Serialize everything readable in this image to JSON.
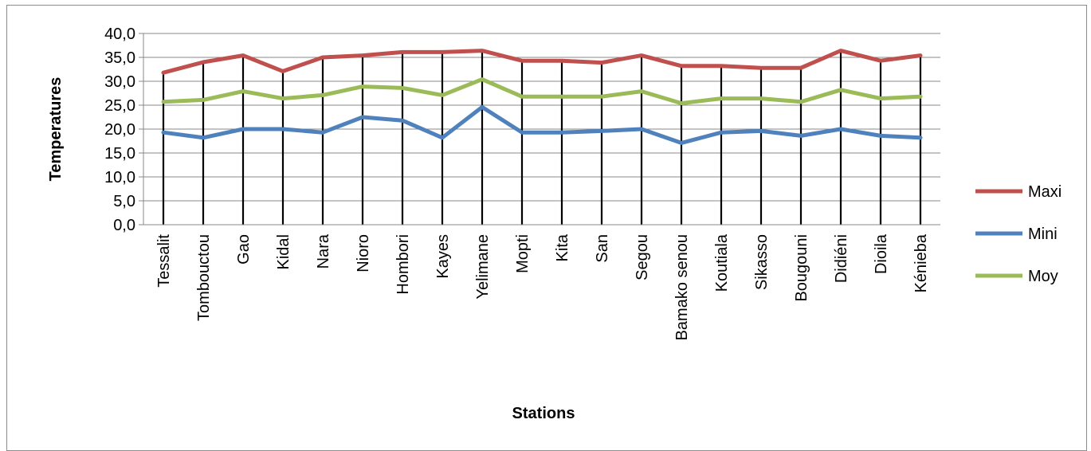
{
  "chart_data": {
    "type": "line",
    "xlabel": "Stations",
    "ylabel": "Temperatures",
    "ylim": [
      0,
      40
    ],
    "yticks": [
      "0,0",
      "5,0",
      "10,0",
      "15,0",
      "20,0",
      "25,0",
      "30,0",
      "35,0",
      "40,0"
    ],
    "grid": "horizontal",
    "drop_lines": true,
    "legend_position": "right",
    "categories": [
      "Tessalit",
      "Tombouctou",
      "Gao",
      "Kidal",
      "Nara",
      "Nioro",
      "Hombori",
      "Kayes",
      "Yelimane",
      "Mopti",
      "Kita",
      "San",
      "Segou",
      "Bamako senou",
      "Koutiala",
      "Sikasso",
      "Bougouni",
      "Didiéni",
      "Dioila",
      "Kénieba"
    ],
    "series": [
      {
        "name": "Maxi",
        "color": "#C0504D",
        "values": [
          31.8,
          34.0,
          35.4,
          32.1,
          35.0,
          35.4,
          36.1,
          36.1,
          36.4,
          34.3,
          34.3,
          33.9,
          35.4,
          33.2,
          33.2,
          32.8,
          32.8,
          36.4,
          34.3,
          35.4
        ]
      },
      {
        "name": "Mini",
        "color": "#4F81BD",
        "values": [
          19.3,
          18.2,
          20.0,
          20.0,
          19.3,
          22.5,
          21.8,
          18.2,
          24.6,
          19.3,
          19.3,
          19.6,
          20.0,
          17.1,
          19.3,
          19.6,
          18.6,
          20.0,
          18.6,
          18.2
        ]
      },
      {
        "name": "Moy",
        "color": "#9BBB59",
        "values": [
          25.7,
          26.1,
          27.9,
          26.4,
          27.1,
          28.9,
          28.6,
          27.1,
          30.4,
          26.8,
          26.8,
          26.8,
          27.9,
          25.4,
          26.4,
          26.4,
          25.7,
          28.2,
          26.4,
          26.8
        ]
      }
    ]
  }
}
